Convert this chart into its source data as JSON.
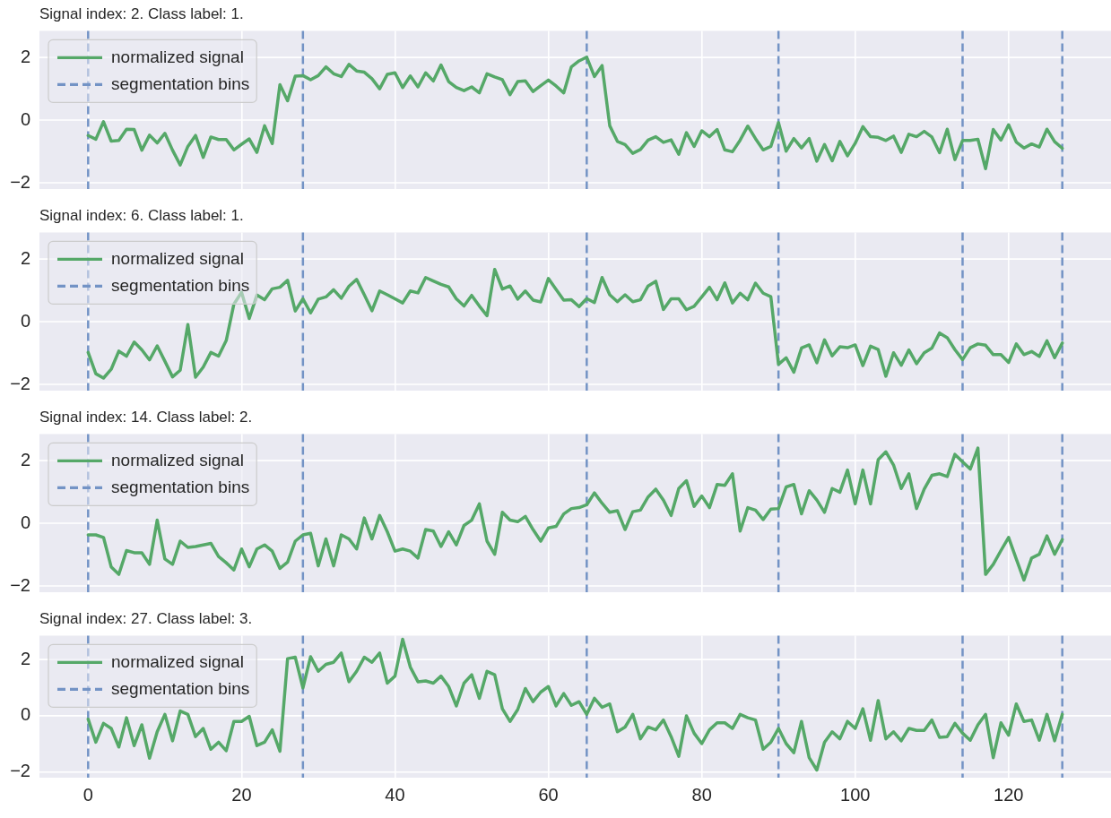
{
  "chart_data": [
    {
      "type": "line",
      "title": "Signal index: 2. Class label: 1.",
      "x": [
        0,
        1,
        2,
        3,
        4,
        5,
        6,
        7,
        8,
        9,
        10,
        11,
        12,
        13,
        14,
        15,
        16,
        17,
        18,
        19,
        20,
        21,
        22,
        23,
        24,
        25,
        26,
        27,
        28,
        29,
        30,
        31,
        32,
        33,
        34,
        35,
        36,
        37,
        38,
        39,
        40,
        41,
        42,
        43,
        44,
        45,
        46,
        47,
        48,
        49,
        50,
        51,
        52,
        53,
        54,
        55,
        56,
        57,
        58,
        59,
        60,
        61,
        62,
        63,
        64,
        65,
        66,
        67,
        68,
        69,
        70,
        71,
        72,
        73,
        74,
        75,
        76,
        77,
        78,
        79,
        80,
        81,
        82,
        83,
        84,
        85,
        86,
        87,
        88,
        89,
        90,
        91,
        92,
        93,
        94,
        95,
        96,
        97,
        98,
        99,
        100,
        101,
        102,
        103,
        104,
        105,
        106,
        107,
        108,
        109,
        110,
        111,
        112,
        113,
        114,
        115,
        116,
        117,
        118,
        119,
        120,
        121,
        122,
        123,
        124,
        125,
        126,
        127
      ],
      "series": [
        {
          "name": "normalized signal",
          "color": "#55a868",
          "values": [
            -0.49,
            -0.61,
            -0.05,
            -0.67,
            -0.65,
            -0.29,
            -0.3,
            -0.96,
            -0.48,
            -0.73,
            -0.42,
            -0.96,
            -1.43,
            -0.84,
            -0.49,
            -1.19,
            -0.54,
            -0.62,
            -0.62,
            -0.95,
            -0.77,
            -0.6,
            -1.03,
            -0.18,
            -0.75,
            1.13,
            0.62,
            1.4,
            1.42,
            1.29,
            1.42,
            1.7,
            1.48,
            1.39,
            1.78,
            1.57,
            1.53,
            1.32,
            1.0,
            1.46,
            1.51,
            1.04,
            1.41,
            1.06,
            1.51,
            1.25,
            1.76,
            1.23,
            1.04,
            0.94,
            1.06,
            0.87,
            1.48,
            1.38,
            1.29,
            0.81,
            1.23,
            1.25,
            0.91,
            1.1,
            1.28,
            1.09,
            0.87,
            1.7,
            1.89,
            2.01,
            1.39,
            1.74,
            -0.18,
            -0.68,
            -0.78,
            -1.06,
            -0.94,
            -0.64,
            -0.53,
            -0.71,
            -0.63,
            -1.09,
            -0.4,
            -0.84,
            -0.34,
            -0.53,
            -0.3,
            -0.95,
            -1.01,
            -0.64,
            -0.19,
            -0.59,
            -0.95,
            -0.84,
            -0.08,
            -0.99,
            -0.59,
            -0.89,
            -0.59,
            -1.31,
            -0.78,
            -1.3,
            -0.68,
            -1.14,
            -0.74,
            -0.21,
            -0.53,
            -0.55,
            -0.65,
            -0.51,
            -1.03,
            -0.45,
            -0.53,
            -0.36,
            -0.54,
            -1.04,
            -0.29,
            -1.26,
            -0.65,
            -0.65,
            -0.61,
            -1.55,
            -0.3,
            -0.64,
            -0.15,
            -0.7,
            -0.89,
            -0.76,
            -0.86,
            -0.29,
            -0.69,
            -0.9
          ]
        }
      ],
      "ref_lines": [
        {
          "axis": "x",
          "value": 0,
          "label": "segmentation bins",
          "color": "#7393c5",
          "line_style": "dashed"
        },
        {
          "axis": "x",
          "value": 28,
          "color": "#7393c5",
          "line_style": "dashed"
        },
        {
          "axis": "x",
          "value": 65,
          "color": "#7393c5",
          "line_style": "dashed"
        },
        {
          "axis": "x",
          "value": 90,
          "color": "#7393c5",
          "line_style": "dashed"
        },
        {
          "axis": "x",
          "value": 114,
          "color": "#7393c5",
          "line_style": "dashed"
        },
        {
          "axis": "x",
          "value": 127,
          "color": "#7393c5",
          "line_style": "dashed"
        }
      ],
      "xlim": [
        -6.35,
        133.35
      ],
      "xticks": [
        0,
        20,
        40,
        60,
        80,
        100,
        120
      ],
      "ylim": [
        -2.2,
        2.85
      ],
      "yticks": [
        -2,
        0,
        2
      ],
      "grid": true,
      "legend": "top left",
      "tick_labels": "y"
    },
    {
      "type": "line",
      "title": "Signal index: 6. Class label: 1.",
      "x": [
        0,
        1,
        2,
        3,
        4,
        5,
        6,
        7,
        8,
        9,
        10,
        11,
        12,
        13,
        14,
        15,
        16,
        17,
        18,
        19,
        20,
        21,
        22,
        23,
        24,
        25,
        26,
        27,
        28,
        29,
        30,
        31,
        32,
        33,
        34,
        35,
        36,
        37,
        38,
        39,
        40,
        41,
        42,
        43,
        44,
        45,
        46,
        47,
        48,
        49,
        50,
        51,
        52,
        53,
        54,
        55,
        56,
        57,
        58,
        59,
        60,
        61,
        62,
        63,
        64,
        65,
        66,
        67,
        68,
        69,
        70,
        71,
        72,
        73,
        74,
        75,
        76,
        77,
        78,
        79,
        80,
        81,
        82,
        83,
        84,
        85,
        86,
        87,
        88,
        89,
        90,
        91,
        92,
        93,
        94,
        95,
        96,
        97,
        98,
        99,
        100,
        101,
        102,
        103,
        104,
        105,
        106,
        107,
        108,
        109,
        110,
        111,
        112,
        113,
        114,
        115,
        116,
        117,
        118,
        119,
        120,
        121,
        122,
        123,
        124,
        125,
        126,
        127
      ],
      "series": [
        {
          "name": "normalized signal",
          "color": "#55a868",
          "values": [
            -0.98,
            -1.66,
            -1.8,
            -1.52,
            -0.94,
            -1.1,
            -0.65,
            -0.9,
            -1.22,
            -0.77,
            -1.26,
            -1.76,
            -1.55,
            -0.09,
            -1.77,
            -1.45,
            -0.98,
            -1.1,
            -0.6,
            0.56,
            0.94,
            0.1,
            0.85,
            0.7,
            1.05,
            1.1,
            1.32,
            0.34,
            0.73,
            0.28,
            0.72,
            0.79,
            1.02,
            0.75,
            1.13,
            1.35,
            0.86,
            0.35,
            0.98,
            0.86,
            0.73,
            0.6,
            0.98,
            0.92,
            1.41,
            1.3,
            1.19,
            1.11,
            0.73,
            0.5,
            0.84,
            0.5,
            0.19,
            1.67,
            1.04,
            1.14,
            0.72,
            0.98,
            0.69,
            0.63,
            1.38,
            1.03,
            0.69,
            0.7,
            0.48,
            0.74,
            0.61,
            1.41,
            0.86,
            0.64,
            0.86,
            0.64,
            0.7,
            1.14,
            1.29,
            0.39,
            0.73,
            0.73,
            0.38,
            0.49,
            0.79,
            1.1,
            0.7,
            1.24,
            0.6,
            0.91,
            0.7,
            1.23,
            0.91,
            0.8,
            -1.36,
            -1.15,
            -1.61,
            -0.84,
            -0.74,
            -1.31,
            -0.58,
            -1.09,
            -0.8,
            -0.83,
            -0.74,
            -1.4,
            -0.78,
            -0.89,
            -1.74,
            -0.99,
            -1.39,
            -0.9,
            -1.34,
            -0.99,
            -0.84,
            -0.36,
            -0.51,
            -0.89,
            -1.21,
            -0.83,
            -0.71,
            -0.75,
            -1.05,
            -1.05,
            -1.3,
            -0.71,
            -1.05,
            -0.95,
            -1.11,
            -0.61,
            -1.15,
            -0.68
          ]
        }
      ],
      "ref_lines": [
        {
          "axis": "x",
          "value": 0,
          "label": "segmentation bins",
          "color": "#7393c5",
          "line_style": "dashed"
        },
        {
          "axis": "x",
          "value": 28,
          "color": "#7393c5",
          "line_style": "dashed"
        },
        {
          "axis": "x",
          "value": 65,
          "color": "#7393c5",
          "line_style": "dashed"
        },
        {
          "axis": "x",
          "value": 90,
          "color": "#7393c5",
          "line_style": "dashed"
        },
        {
          "axis": "x",
          "value": 114,
          "color": "#7393c5",
          "line_style": "dashed"
        },
        {
          "axis": "x",
          "value": 127,
          "color": "#7393c5",
          "line_style": "dashed"
        }
      ],
      "xlim": [
        -6.35,
        133.35
      ],
      "xticks": [
        0,
        20,
        40,
        60,
        80,
        100,
        120
      ],
      "ylim": [
        -2.2,
        2.85
      ],
      "yticks": [
        -2,
        0,
        2
      ],
      "grid": true,
      "legend": "top left",
      "tick_labels": "y"
    },
    {
      "type": "line",
      "title": "Signal index: 14. Class label: 2.",
      "x": [
        0,
        1,
        2,
        3,
        4,
        5,
        6,
        7,
        8,
        9,
        10,
        11,
        12,
        13,
        14,
        15,
        16,
        17,
        18,
        19,
        20,
        21,
        22,
        23,
        24,
        25,
        26,
        27,
        28,
        29,
        30,
        31,
        32,
        33,
        34,
        35,
        36,
        37,
        38,
        39,
        40,
        41,
        42,
        43,
        44,
        45,
        46,
        47,
        48,
        49,
        50,
        51,
        52,
        53,
        54,
        55,
        56,
        57,
        58,
        59,
        60,
        61,
        62,
        63,
        64,
        65,
        66,
        67,
        68,
        69,
        70,
        71,
        72,
        73,
        74,
        75,
        76,
        77,
        78,
        79,
        80,
        81,
        82,
        83,
        84,
        85,
        86,
        87,
        88,
        89,
        90,
        91,
        92,
        93,
        94,
        95,
        96,
        97,
        98,
        99,
        100,
        101,
        102,
        103,
        104,
        105,
        106,
        107,
        108,
        109,
        110,
        111,
        112,
        113,
        114,
        115,
        116,
        117,
        118,
        119,
        120,
        121,
        122,
        123,
        124,
        125,
        126,
        127
      ],
      "series": [
        {
          "name": "normalized signal",
          "color": "#55a868",
          "values": [
            -0.37,
            -0.37,
            -0.45,
            -1.39,
            -1.63,
            -0.87,
            -0.94,
            -0.94,
            -1.31,
            0.1,
            -1.14,
            -1.31,
            -0.57,
            -0.77,
            -0.74,
            -0.69,
            -0.64,
            -1.06,
            -1.26,
            -1.49,
            -0.82,
            -1.39,
            -0.82,
            -0.69,
            -0.89,
            -1.44,
            -1.24,
            -0.57,
            -0.37,
            -0.32,
            -1.36,
            -0.5,
            -1.36,
            -0.37,
            -0.5,
            -0.82,
            0.17,
            -0.5,
            0.25,
            -0.27,
            -0.89,
            -0.82,
            -0.89,
            -1.11,
            -0.2,
            -0.25,
            -0.74,
            -0.27,
            -0.69,
            -0.07,
            0.1,
            0.62,
            -0.57,
            -0.99,
            0.35,
            0.1,
            0.05,
            0.22,
            -0.2,
            -0.57,
            -0.15,
            -0.1,
            0.3,
            0.47,
            0.5,
            0.59,
            0.97,
            0.64,
            0.35,
            0.4,
            -0.2,
            0.37,
            0.42,
            0.84,
            1.09,
            0.74,
            0.25,
            1.11,
            1.36,
            0.54,
            0.87,
            0.5,
            1.24,
            1.21,
            1.58,
            -0.25,
            0.5,
            0.42,
            0.12,
            0.45,
            0.47,
            1.16,
            1.24,
            0.3,
            1.04,
            0.74,
            0.35,
            1.11,
            0.99,
            1.7,
            0.62,
            1.7,
            0.62,
            2.03,
            2.28,
            1.86,
            1.11,
            1.58,
            0.47,
            1.09,
            1.53,
            1.58,
            1.49,
            2.2,
            1.96,
            1.73,
            2.4,
            -1.63,
            -1.31,
            -0.87,
            -0.45,
            -1.14,
            -1.81,
            -1.11,
            -0.99,
            -0.4,
            -0.99,
            -0.52
          ]
        }
      ],
      "ref_lines": [
        {
          "axis": "x",
          "value": 0,
          "label": "segmentation bins",
          "color": "#7393c5",
          "line_style": "dashed"
        },
        {
          "axis": "x",
          "value": 28,
          "color": "#7393c5",
          "line_style": "dashed"
        },
        {
          "axis": "x",
          "value": 65,
          "color": "#7393c5",
          "line_style": "dashed"
        },
        {
          "axis": "x",
          "value": 90,
          "color": "#7393c5",
          "line_style": "dashed"
        },
        {
          "axis": "x",
          "value": 114,
          "color": "#7393c5",
          "line_style": "dashed"
        },
        {
          "axis": "x",
          "value": 127,
          "color": "#7393c5",
          "line_style": "dashed"
        }
      ],
      "xlim": [
        -6.35,
        133.35
      ],
      "xticks": [
        0,
        20,
        40,
        60,
        80,
        100,
        120
      ],
      "ylim": [
        -2.2,
        2.85
      ],
      "yticks": [
        -2,
        0,
        2
      ],
      "grid": true,
      "legend": "top left",
      "tick_labels": "y"
    },
    {
      "type": "line",
      "title": "Signal index: 27. Class label: 3.",
      "x": [
        0,
        1,
        2,
        3,
        4,
        5,
        6,
        7,
        8,
        9,
        10,
        11,
        12,
        13,
        14,
        15,
        16,
        17,
        18,
        19,
        20,
        21,
        22,
        23,
        24,
        25,
        26,
        27,
        28,
        29,
        30,
        31,
        32,
        33,
        34,
        35,
        36,
        37,
        38,
        39,
        40,
        41,
        42,
        43,
        44,
        45,
        46,
        47,
        48,
        49,
        50,
        51,
        52,
        53,
        54,
        55,
        56,
        57,
        58,
        59,
        60,
        61,
        62,
        63,
        64,
        65,
        66,
        67,
        68,
        69,
        70,
        71,
        72,
        73,
        74,
        75,
        76,
        77,
        78,
        79,
        80,
        81,
        82,
        83,
        84,
        85,
        86,
        87,
        88,
        89,
        90,
        91,
        92,
        93,
        94,
        95,
        96,
        97,
        98,
        99,
        100,
        101,
        102,
        103,
        104,
        105,
        106,
        107,
        108,
        109,
        110,
        111,
        112,
        113,
        114,
        115,
        116,
        117,
        118,
        119,
        120,
        121,
        122,
        123,
        124,
        125,
        126,
        127
      ],
      "series": [
        {
          "name": "normalized signal",
          "color": "#55a868",
          "values": [
            -0.12,
            -0.94,
            -0.27,
            -0.45,
            -1.11,
            -0.07,
            -1.06,
            -0.32,
            -1.51,
            -0.57,
            0.05,
            -0.89,
            0.17,
            0.05,
            -0.74,
            -0.45,
            -1.19,
            -0.94,
            -1.24,
            -0.2,
            -0.2,
            -0.02,
            -1.06,
            -0.94,
            -0.5,
            -1.26,
            2.03,
            2.08,
            0.99,
            2.1,
            1.58,
            1.83,
            1.9,
            2.23,
            1.21,
            1.58,
            2.08,
            1.9,
            2.23,
            1.16,
            1.41,
            2.72,
            1.73,
            1.21,
            1.24,
            1.16,
            1.41,
            1.04,
            0.35,
            1.16,
            1.46,
            0.62,
            1.58,
            1.46,
            0.25,
            -0.2,
            0.22,
            0.97,
            0.5,
            0.84,
            1.04,
            0.35,
            0.79,
            0.37,
            0.5,
            0.05,
            0.62,
            0.3,
            0.42,
            -0.57,
            -0.4,
            0.05,
            -0.82,
            -0.4,
            -0.5,
            -0.15,
            -0.74,
            -1.44,
            0.0,
            -0.62,
            -0.99,
            -0.5,
            -0.25,
            -0.25,
            -0.45,
            0.05,
            -0.07,
            -0.15,
            -1.19,
            -0.94,
            -0.45,
            -0.99,
            -1.31,
            -0.2,
            -1.49,
            -1.93,
            -0.94,
            -0.57,
            -0.82,
            -0.2,
            -0.45,
            0.25,
            -0.87,
            0.54,
            -0.82,
            -0.57,
            -0.89,
            -0.45,
            -0.52,
            -0.52,
            -0.15,
            -0.77,
            -0.74,
            -0.27,
            -0.62,
            -0.87,
            -0.32,
            0.05,
            -1.49,
            -0.25,
            -0.69,
            0.42,
            -0.2,
            -0.15,
            -0.87,
            0.05,
            -0.89,
            0.05
          ]
        }
      ],
      "ref_lines": [
        {
          "axis": "x",
          "value": 0,
          "label": "segmentation bins",
          "color": "#7393c5",
          "line_style": "dashed"
        },
        {
          "axis": "x",
          "value": 28,
          "color": "#7393c5",
          "line_style": "dashed"
        },
        {
          "axis": "x",
          "value": 65,
          "color": "#7393c5",
          "line_style": "dashed"
        },
        {
          "axis": "x",
          "value": 90,
          "color": "#7393c5",
          "line_style": "dashed"
        },
        {
          "axis": "x",
          "value": 114,
          "color": "#7393c5",
          "line_style": "dashed"
        },
        {
          "axis": "x",
          "value": 127,
          "color": "#7393c5",
          "line_style": "dashed"
        }
      ],
      "xlim": [
        -6.35,
        133.35
      ],
      "xticks": [
        0,
        20,
        40,
        60,
        80,
        100,
        120
      ],
      "ylim": [
        -2.2,
        2.85
      ],
      "yticks": [
        -2,
        0,
        2
      ],
      "grid": true,
      "legend": "top left"
    }
  ]
}
